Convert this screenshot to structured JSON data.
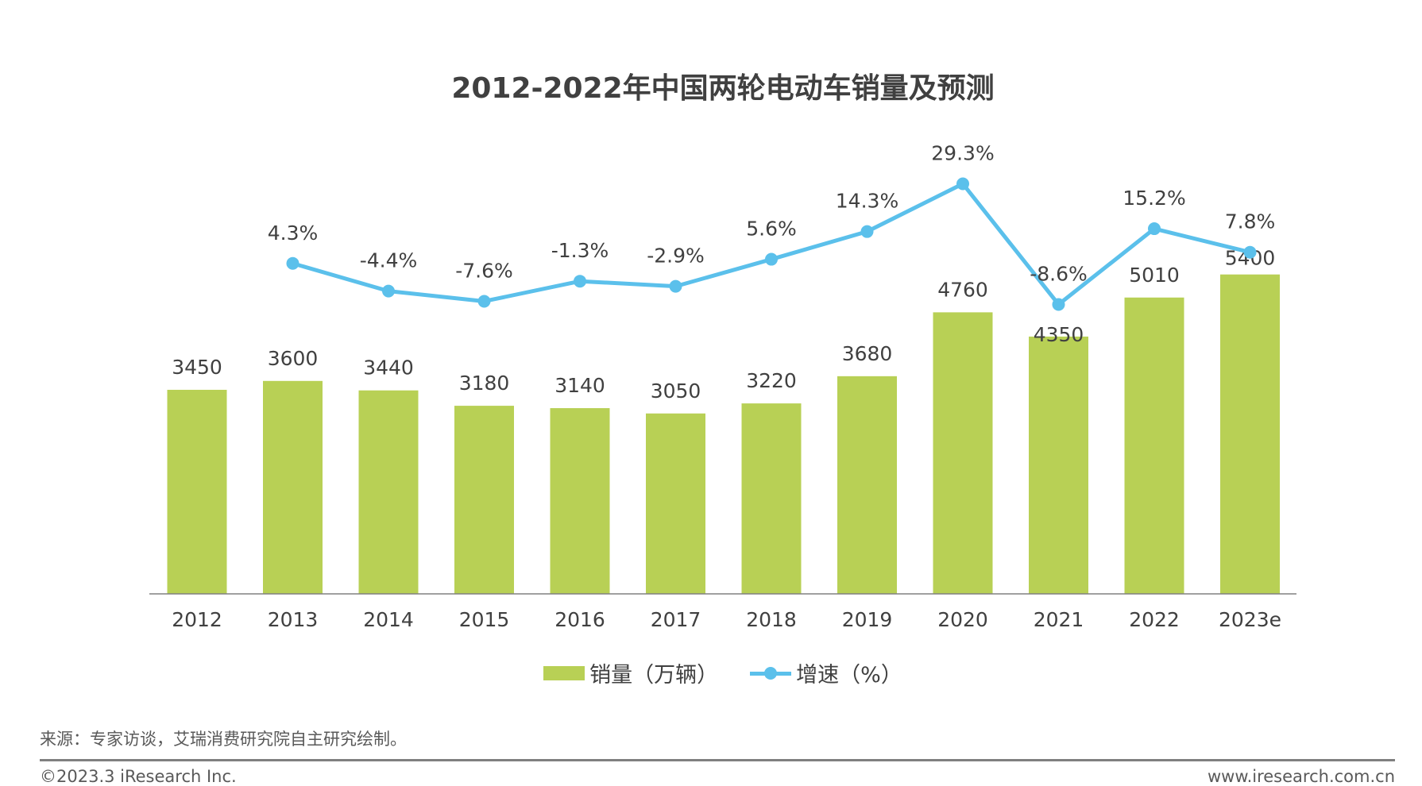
{
  "chart_data": {
    "type": "bar+line",
    "title": "2012-2022年中国两轮电动车销量及预测",
    "categories": [
      "2012",
      "2013",
      "2014",
      "2015",
      "2016",
      "2017",
      "2018",
      "2019",
      "2020",
      "2021",
      "2022",
      "2023e"
    ],
    "series": [
      {
        "name": "销量（万辆）",
        "type": "bar",
        "color": "#b8d055",
        "values": [
          3450,
          3600,
          3440,
          3180,
          3140,
          3050,
          3220,
          3680,
          4760,
          4350,
          5010,
          5400
        ]
      },
      {
        "name": "增速（%）",
        "type": "line",
        "color": "#5bc0eb",
        "values": [
          null,
          4.3,
          -4.4,
          -7.6,
          -1.3,
          -2.9,
          5.6,
          14.3,
          29.3,
          -8.6,
          15.2,
          7.8
        ],
        "labels": [
          "",
          "4.3%",
          "-4.4%",
          "-7.6%",
          "-1.3%",
          "-2.9%",
          "5.6%",
          "14.3%",
          "29.3%",
          "-8.6%",
          "15.2%",
          "7.8%"
        ]
      }
    ],
    "legend_position": "bottom",
    "grid": false
  },
  "legend": {
    "bar": "销量（万辆）",
    "line": "增速（%）"
  },
  "footer": {
    "source": "来源：专家访谈，艾瑞消费研究院自主研究绘制。",
    "copyright": "©2023.3 iResearch Inc.",
    "website": "www.iresearch.com.cn"
  }
}
